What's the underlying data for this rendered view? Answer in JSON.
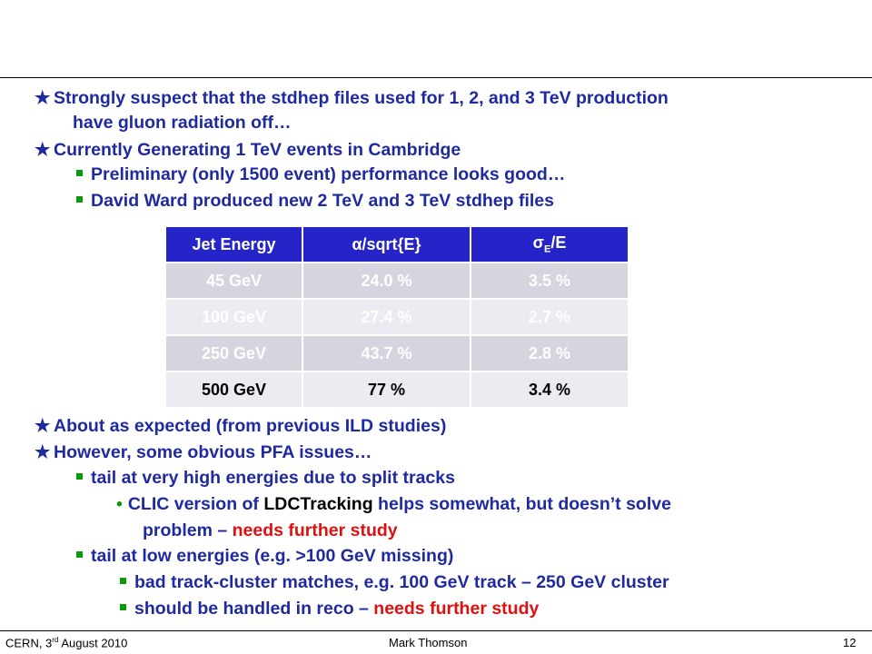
{
  "bullets_top": [
    {
      "line1": "Strongly suspect that the stdhep files used for 1, 2, and 3 TeV production",
      "line2": "have gluon radiation off…"
    },
    {
      "line1": "Currently Generating 1 TeV events in Cambridge"
    }
  ],
  "sub_top": [
    "Preliminary (only 1500 event) performance looks good…",
    "David Ward produced new 2 TeV and 3 TeV stdhep files"
  ],
  "table": {
    "headers": [
      "Jet Energy",
      "α/sqrt{E}",
      "σE/E"
    ],
    "rows": [
      [
        "45 GeV",
        "24.0 %",
        "3.5 %"
      ],
      [
        "100 GeV",
        "27.4 %",
        "2.7 %"
      ],
      [
        "250 GeV",
        "43.7 %",
        "2.8 %"
      ],
      [
        "500 GeV",
        "77 %",
        "3.4 %"
      ]
    ]
  },
  "bullets_bottom": [
    "About as expected (from previous ILD studies)",
    "However, some obvious PFA issues…"
  ],
  "sub_bottom": {
    "tail_high": "tail at very high energies due to split tracks",
    "clic_pre": "CLIC version of ",
    "clic_name": "LDCTracking",
    "clic_post": " helps somewhat, but doesn’t solve",
    "problem_pre": "problem – ",
    "problem_red": "needs further study",
    "tail_low": "tail at low energies (e.g. >100 GeV missing)",
    "bad_track": "bad track-cluster matches, e.g. 100 GeV track – 250 GeV cluster",
    "reco_pre": "should be handled in reco – ",
    "reco_red": "needs further study"
  },
  "footer": {
    "venue_pre": "CERN, 3",
    "venue_sup": "rd",
    "venue_post": " August 2010",
    "author": "Mark Thomson",
    "page": "12"
  },
  "colors": {
    "text": "#1f2aa0",
    "accent_red": "#e01010",
    "bullet_green": "#0a9a0a",
    "header_blue": "#2424c8"
  }
}
